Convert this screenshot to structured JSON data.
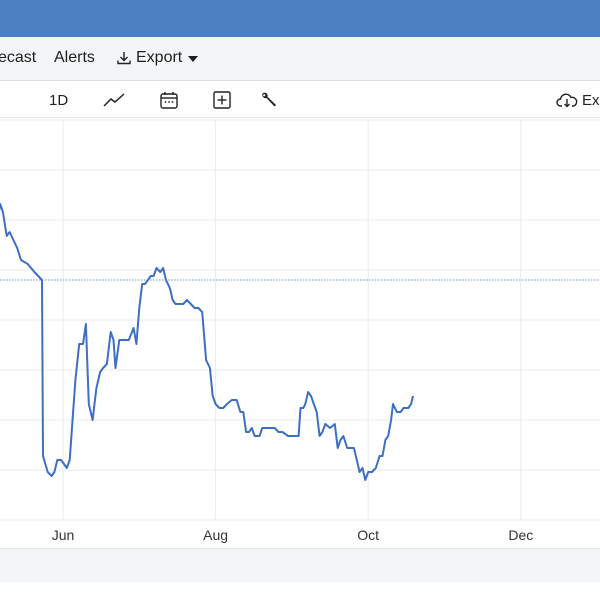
{
  "colors": {
    "topbar": "#4b80c2",
    "menubar": "#f4f5f7",
    "line": "#3d6fc4",
    "reference_line": "#6b8fd0",
    "grid": "#e9ebee"
  },
  "menu": {
    "forecast_label": "ecast",
    "alerts_label": "Alerts",
    "export_label": "Export"
  },
  "toolbar": {
    "interval_label": "1D",
    "extra_label": "Ex",
    "icons": [
      "line-chart-icon",
      "calendar-icon",
      "add-box-icon",
      "wrench-icon",
      "cloud-download-icon"
    ]
  },
  "chart_data": {
    "type": "line",
    "x_tick_labels": [
      "Jun",
      "Aug",
      "Oct",
      "Dec"
    ],
    "grid": true,
    "reference_line": {
      "style": "dotted",
      "level": 60
    },
    "series": [
      {
        "points": [
          [
            -3.5,
            73
          ],
          [
            -3.3,
            79
          ],
          [
            -3.15,
            77
          ],
          [
            -2.95,
            71
          ],
          [
            -2.8,
            72
          ],
          [
            -2.6,
            70
          ],
          [
            -2.4,
            68
          ],
          [
            -2.2,
            65
          ],
          [
            -1.85,
            64
          ],
          [
            -1.5,
            62
          ],
          [
            -1.1,
            60
          ],
          [
            -1.05,
            16
          ],
          [
            -0.8,
            12
          ],
          [
            -0.6,
            11
          ],
          [
            -0.45,
            12
          ],
          [
            -0.3,
            15
          ],
          [
            -0.1,
            15
          ],
          [
            0.05,
            14
          ],
          [
            0.2,
            13
          ],
          [
            0.35,
            15
          ],
          [
            0.65,
            35
          ],
          [
            0.85,
            44
          ],
          [
            1.05,
            44
          ],
          [
            1.2,
            49
          ],
          [
            1.35,
            29
          ],
          [
            1.55,
            25
          ],
          [
            1.75,
            33
          ],
          [
            1.95,
            37
          ],
          [
            2.1,
            38
          ],
          [
            2.3,
            39
          ],
          [
            2.5,
            47
          ],
          [
            2.65,
            45
          ],
          [
            2.75,
            38
          ],
          [
            2.95,
            45
          ],
          [
            3.2,
            45
          ],
          [
            3.45,
            45
          ],
          [
            3.7,
            48
          ],
          [
            3.85,
            44
          ],
          [
            4.0,
            53
          ],
          [
            4.15,
            59
          ],
          [
            4.3,
            59
          ],
          [
            4.45,
            60
          ],
          [
            4.6,
            61
          ],
          [
            4.75,
            61
          ],
          [
            4.9,
            63
          ],
          [
            5.1,
            62
          ],
          [
            5.25,
            63
          ],
          [
            5.4,
            60
          ],
          [
            5.6,
            58
          ],
          [
            5.75,
            55
          ],
          [
            5.9,
            54
          ],
          [
            6.1,
            54
          ],
          [
            6.3,
            54
          ],
          [
            6.5,
            55
          ],
          [
            6.7,
            54
          ],
          [
            6.9,
            53
          ],
          [
            7.1,
            53
          ],
          [
            7.3,
            52
          ],
          [
            7.5,
            40
          ],
          [
            7.7,
            38
          ],
          [
            7.85,
            31
          ],
          [
            8.0,
            29
          ],
          [
            8.2,
            28
          ],
          [
            8.4,
            28
          ],
          [
            8.6,
            29
          ],
          [
            8.85,
            30
          ],
          [
            9.1,
            30
          ],
          [
            9.3,
            27
          ],
          [
            9.45,
            27
          ],
          [
            9.6,
            22
          ],
          [
            9.75,
            22
          ],
          [
            9.9,
            23
          ],
          [
            10.05,
            21
          ],
          [
            10.3,
            21
          ],
          [
            10.45,
            23
          ],
          [
            10.7,
            23
          ],
          [
            10.9,
            23
          ],
          [
            11.1,
            23
          ],
          [
            11.3,
            22
          ],
          [
            11.5,
            22
          ],
          [
            11.8,
            21
          ],
          [
            12.1,
            21
          ],
          [
            12.35,
            21
          ],
          [
            12.45,
            28
          ],
          [
            12.6,
            28
          ],
          [
            12.7,
            29
          ],
          [
            12.85,
            32
          ],
          [
            13.0,
            31
          ],
          [
            13.15,
            29
          ],
          [
            13.3,
            27
          ],
          [
            13.45,
            21
          ],
          [
            13.6,
            22
          ],
          [
            13.75,
            24
          ],
          [
            14.0,
            23
          ],
          [
            14.25,
            24
          ],
          [
            14.4,
            18
          ],
          [
            14.55,
            20
          ],
          [
            14.7,
            21
          ],
          [
            14.9,
            18
          ],
          [
            15.1,
            18
          ],
          [
            15.25,
            18
          ],
          [
            15.4,
            15
          ],
          [
            15.55,
            12
          ],
          [
            15.7,
            13
          ],
          [
            15.85,
            10
          ],
          [
            16.0,
            12
          ],
          [
            16.2,
            12
          ],
          [
            16.4,
            13
          ],
          [
            16.6,
            16
          ],
          [
            16.75,
            16
          ],
          [
            16.9,
            20
          ],
          [
            17.05,
            21
          ],
          [
            17.2,
            25
          ],
          [
            17.3,
            29
          ],
          [
            17.5,
            27
          ],
          [
            17.7,
            27
          ],
          [
            17.85,
            28
          ],
          [
            18.1,
            28
          ],
          [
            18.25,
            29
          ],
          [
            18.35,
            31
          ]
        ]
      }
    ]
  }
}
